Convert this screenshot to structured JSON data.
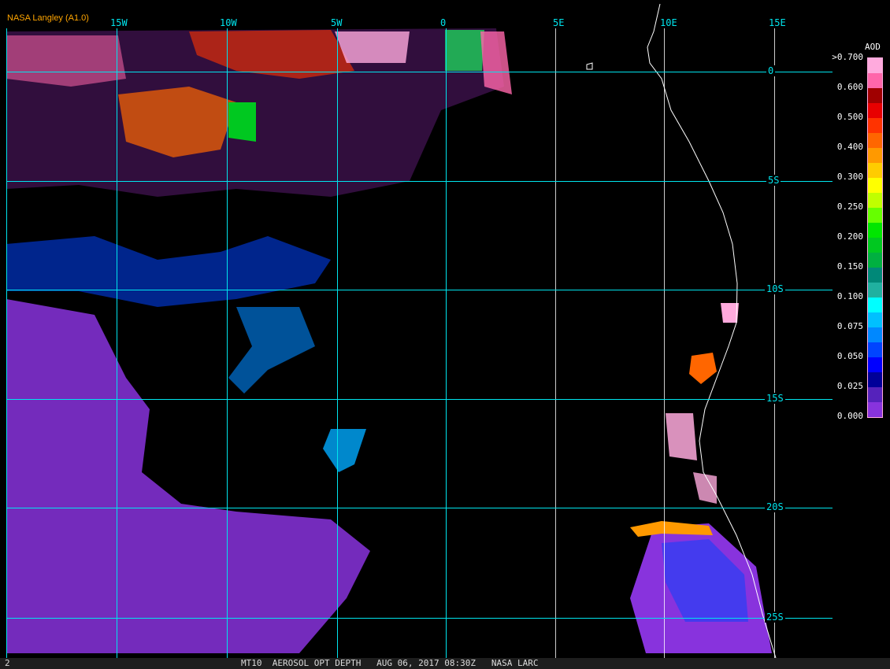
{
  "header": {
    "title": "NASA Langley (A1.0)"
  },
  "grid": {
    "longitudes": [
      "15W",
      "10W",
      "5W",
      "0",
      "5E",
      "10E",
      "15E"
    ],
    "latitudes": [
      "0",
      "5S",
      "10S",
      "15S",
      "20S",
      "25S"
    ],
    "line_color": "#00e5ee"
  },
  "legend": {
    "title": "AOD",
    "tick_labels": [
      ">0.700",
      "0.600",
      "0.500",
      "0.400",
      "0.300",
      "0.250",
      "0.200",
      "0.150",
      "0.100",
      "0.075",
      "0.050",
      "0.025",
      "0.000"
    ],
    "colors": [
      "#ffaadd",
      "#ff66aa",
      "#a00000",
      "#e80000",
      "#ff3300",
      "#ff6600",
      "#ff9900",
      "#ffcc00",
      "#ffff00",
      "#c0ff00",
      "#66ff00",
      "#00e600",
      "#00c820",
      "#00b040",
      "#008878",
      "#20b0a0",
      "#00ffff",
      "#00c0ff",
      "#0088ff",
      "#0044ff",
      "#0000ff",
      "#000099",
      "#5522bb",
      "#8833dd"
    ]
  },
  "status_bar": {
    "frame": "2",
    "caption": "MT10  AEROSOL OPT DEPTH   AUG 06, 2017 08:30Z   NASA LARC"
  }
}
